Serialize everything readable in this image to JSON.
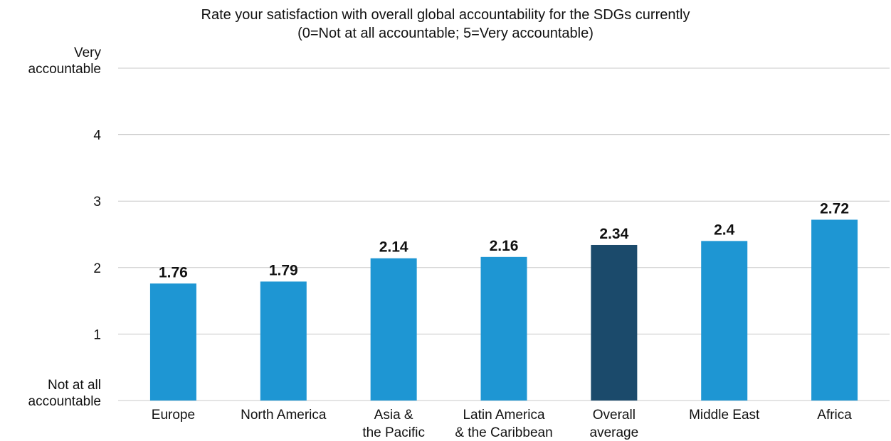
{
  "chart_data": {
    "type": "bar",
    "title": "Rate your satisfaction with overall global accountability for the SDGs currently",
    "subtitle": "(0=Not at all accountable; 5=Very accountable)",
    "xlabel": "",
    "ylabel": "",
    "ylim": [
      0,
      5
    ],
    "grid": true,
    "y_ticks": [
      {
        "value": 0,
        "lines": [
          "Not at all",
          "accountable"
        ]
      },
      {
        "value": 1,
        "lines": [
          "1"
        ]
      },
      {
        "value": 2,
        "lines": [
          "2"
        ]
      },
      {
        "value": 3,
        "lines": [
          "3"
        ]
      },
      {
        "value": 4,
        "lines": [
          "4"
        ]
      },
      {
        "value": 5,
        "lines": [
          "Very",
          "accountable"
        ]
      }
    ],
    "categories": [
      "Europe",
      "North America",
      "Asia & the Pacific",
      "Latin America & the Caribbean",
      "Overall average",
      "Middle East",
      "Africa"
    ],
    "category_lines": [
      [
        "Europe"
      ],
      [
        "North America"
      ],
      [
        "Asia &",
        "the Pacific"
      ],
      [
        "Latin America",
        "& the Caribbean"
      ],
      [
        "Overall",
        "average"
      ],
      [
        "Middle East"
      ],
      [
        "Africa"
      ]
    ],
    "values": [
      1.76,
      1.79,
      2.14,
      2.16,
      2.34,
      2.4,
      2.72
    ],
    "value_labels": [
      "1.76",
      "1.79",
      "2.14",
      "2.16",
      "2.34",
      "2.4",
      "2.72"
    ],
    "colors": {
      "default_bar": "#1e96d3",
      "highlight_bar": "#1b4a6b",
      "gridline": "#c8c8c8",
      "text": "#111111"
    },
    "highlight_index": 4
  }
}
